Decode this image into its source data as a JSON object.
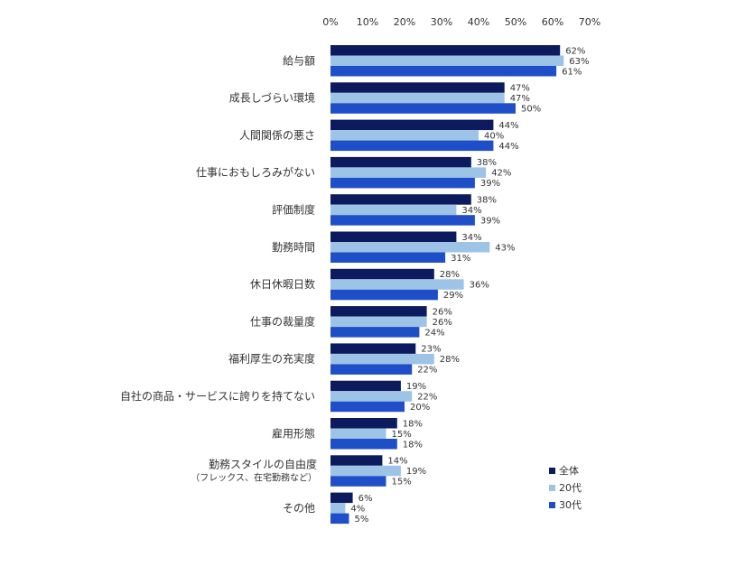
{
  "chart_data": {
    "type": "bar",
    "orientation": "horizontal",
    "title": "",
    "xlabel": "",
    "ylabel": "",
    "xlim": [
      0,
      70
    ],
    "x_ticks": [
      "0%",
      "10%",
      "20%",
      "30%",
      "40%",
      "50%",
      "60%",
      "70%"
    ],
    "grid": false,
    "legend_position": "bottom-right",
    "value_suffix": "%",
    "categories": [
      "給与額",
      "成長しづらい環境",
      "人間関係の悪さ",
      "仕事におもしろみがない",
      "評価制度",
      "勤務時間",
      "休日休暇日数",
      "仕事の裁量度",
      "福利厚生の充実度",
      "自社の商品・サービスに誇りを持てない",
      "雇用形態",
      "勤務スタイルの自由度",
      "その他"
    ],
    "category_sublabels": [
      "",
      "",
      "",
      "",
      "",
      "",
      "",
      "",
      "",
      "",
      "",
      "（フレックス、在宅勤務など）",
      ""
    ],
    "series": [
      {
        "name": "全体",
        "color": "#0c1a5e",
        "values": [
          62,
          47,
          44,
          38,
          38,
          34,
          28,
          26,
          23,
          19,
          18,
          14,
          6
        ]
      },
      {
        "name": "20代",
        "color": "#9dc3e6",
        "values": [
          63,
          47,
          40,
          42,
          34,
          43,
          36,
          26,
          28,
          22,
          15,
          19,
          4
        ]
      },
      {
        "name": "30代",
        "color": "#1e4fc8",
        "values": [
          61,
          50,
          44,
          39,
          39,
          31,
          29,
          24,
          22,
          20,
          18,
          15,
          5
        ]
      }
    ]
  }
}
